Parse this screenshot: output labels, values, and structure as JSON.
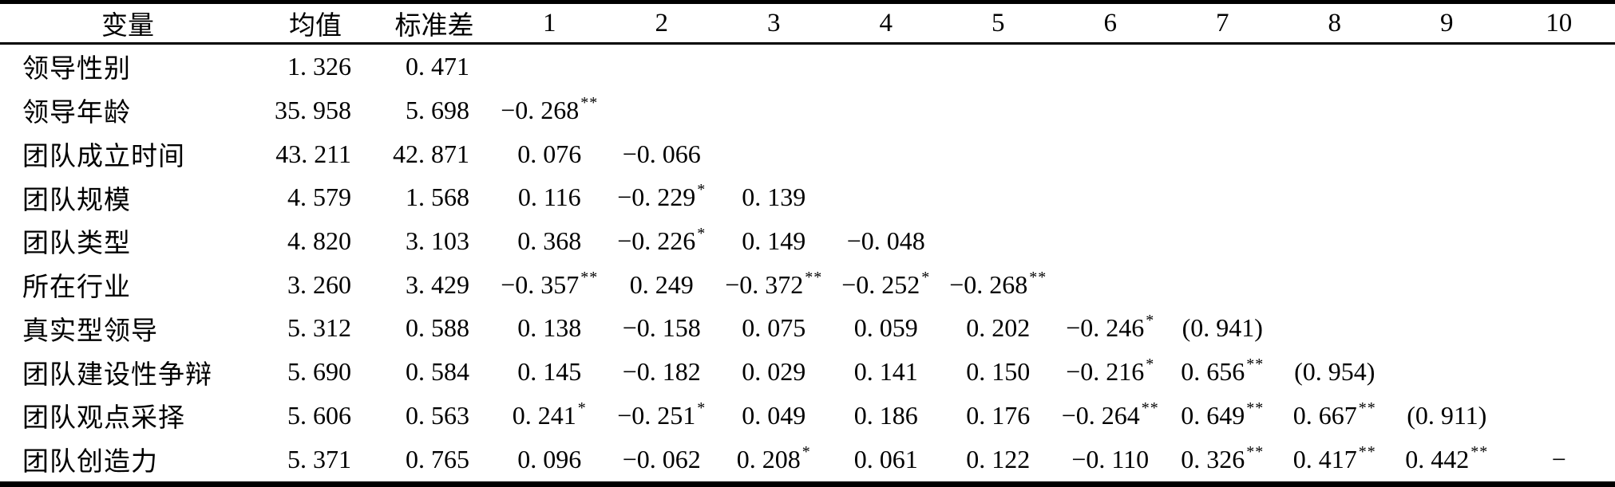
{
  "page": {
    "background_color": "#ffffff",
    "text_color": "#000000",
    "rule_color": "#000000"
  },
  "table": {
    "headers": [
      "变量",
      "均值",
      "标准差",
      "1",
      "2",
      "3",
      "4",
      "5",
      "6",
      "7",
      "8",
      "9",
      "10"
    ],
    "rows": [
      {
        "label": "领导性别",
        "mean": "1. 326",
        "sd": "0. 471",
        "corr": [
          "",
          "",
          "",
          "",
          "",
          "",
          "",
          "",
          "",
          ""
        ]
      },
      {
        "label": "领导年龄",
        "mean": "35. 958",
        "sd": "5. 698",
        "corr": [
          "−0. 268**",
          "",
          "",
          "",
          "",
          "",
          "",
          "",
          "",
          ""
        ]
      },
      {
        "label": "团队成立时间",
        "mean": "43. 211",
        "sd": "42. 871",
        "corr": [
          "0. 076",
          "−0. 066",
          "",
          "",
          "",
          "",
          "",
          "",
          "",
          ""
        ]
      },
      {
        "label": "团队规模",
        "mean": "4. 579",
        "sd": "1. 568",
        "corr": [
          "0. 116",
          "−0. 229*",
          "0. 139",
          "",
          "",
          "",
          "",
          "",
          "",
          ""
        ]
      },
      {
        "label": "团队类型",
        "mean": "4. 820",
        "sd": "3. 103",
        "corr": [
          "0. 368",
          "−0. 226*",
          "0. 149",
          "−0. 048",
          "",
          "",
          "",
          "",
          "",
          ""
        ]
      },
      {
        "label": "所在行业",
        "mean": "3. 260",
        "sd": "3. 429",
        "corr": [
          "−0. 357**",
          "0. 249",
          "−0. 372**",
          "−0. 252*",
          "−0. 268**",
          "",
          "",
          "",
          "",
          ""
        ]
      },
      {
        "label": "真实型领导",
        "mean": "5. 312",
        "sd": "0. 588",
        "corr": [
          "0. 138",
          "−0. 158",
          "0. 075",
          "0. 059",
          "0. 202",
          "−0. 246*",
          "(0. 941)",
          "",
          "",
          ""
        ]
      },
      {
        "label": "团队建设性争辩",
        "mean": "5. 690",
        "sd": "0. 584",
        "corr": [
          "0. 145",
          "−0. 182",
          "0. 029",
          "0. 141",
          "0. 150",
          "−0. 216*",
          "0. 656**",
          "(0. 954)",
          "",
          ""
        ]
      },
      {
        "label": "团队观点采择",
        "mean": "5. 606",
        "sd": "0. 563",
        "corr": [
          "0. 241*",
          "−0. 251*",
          "0. 049",
          "0. 186",
          "0. 176",
          "−0. 264**",
          "0. 649**",
          "0. 667**",
          "(0. 911)",
          ""
        ]
      },
      {
        "label": "团队创造力",
        "mean": "5. 371",
        "sd": "0. 765",
        "corr": [
          "0. 096",
          "−0. 062",
          "0. 208*",
          "0. 061",
          "0. 122",
          "−0. 110",
          "0. 326**",
          "0. 417**",
          "0. 442**",
          "−"
        ]
      }
    ]
  }
}
